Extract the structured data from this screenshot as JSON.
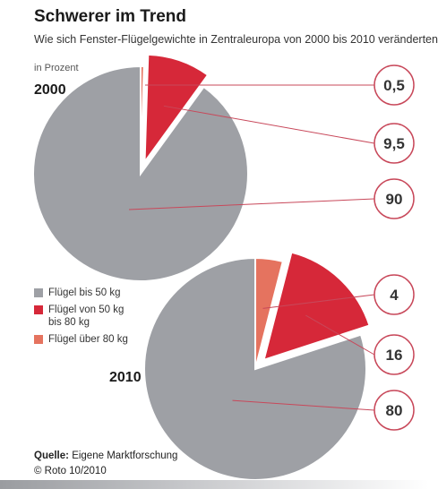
{
  "header": {
    "title": "Schwerer im Trend",
    "subtitle": "Wie sich Fenster-Flügelgewichte in Zentraleuropa von 2000 bis 2010 veränderten",
    "unit": "in Prozent"
  },
  "colors": {
    "gray": "#9ea0a5",
    "red": "#d62839",
    "salmon": "#e5735f",
    "callout": "#c8485a"
  },
  "legend": [
    {
      "label": "Flügel bis 50 kg",
      "color": "#9ea0a5"
    },
    {
      "label": "Flügel von 50 kg bis 80 kg",
      "color": "#d62839"
    },
    {
      "label": "Flügel über 80 kg",
      "color": "#e5735f"
    }
  ],
  "chart_data": [
    {
      "type": "pie",
      "year": "2000",
      "unit": "Prozent",
      "slices": [
        {
          "category": "Flügel über 80 kg",
          "value": 0.5,
          "label": "0,5"
        },
        {
          "category": "Flügel von 50 kg bis 80 kg",
          "value": 9.5,
          "label": "9,5"
        },
        {
          "category": "Flügel bis 50 kg",
          "value": 90,
          "label": "90"
        }
      ]
    },
    {
      "type": "pie",
      "year": "2010",
      "unit": "Prozent",
      "slices": [
        {
          "category": "Flügel über 80 kg",
          "value": 4,
          "label": "4"
        },
        {
          "category": "Flügel von 50 kg bis 80 kg",
          "value": 16,
          "label": "16"
        },
        {
          "category": "Flügel bis 50 kg",
          "value": 80,
          "label": "80"
        }
      ]
    }
  ],
  "footer": {
    "source_label": "Quelle:",
    "source_text": "Eigene Marktforschung",
    "copyright": "© Roto 10/2010"
  }
}
